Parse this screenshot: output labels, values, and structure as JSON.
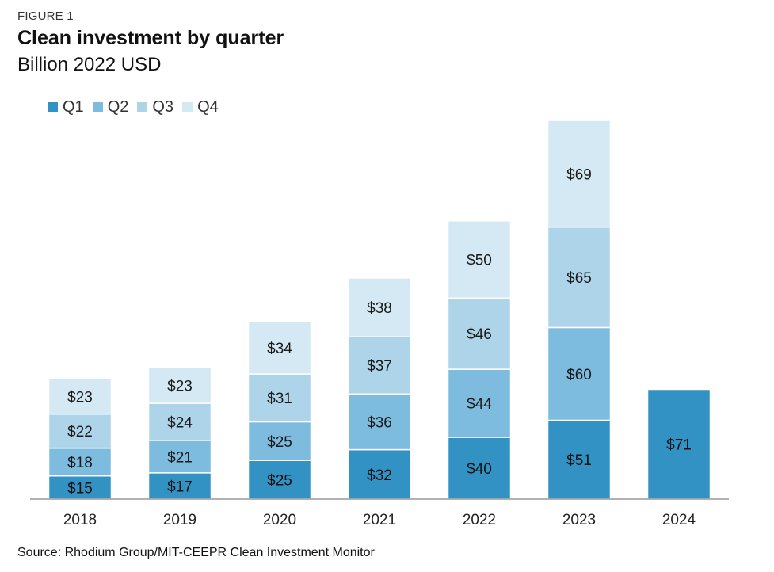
{
  "figure_label": "FIGURE 1",
  "chart_data": {
    "type": "bar",
    "stacked": true,
    "title": "Clean investment by quarter",
    "subtitle": "Billion 2022 USD",
    "xlabel": "",
    "ylabel": "",
    "categories": [
      "2018",
      "2019",
      "2020",
      "2021",
      "2022",
      "2023",
      "2024"
    ],
    "series": [
      {
        "name": "Q1",
        "color": "#3392c4",
        "values": [
          15,
          17,
          25,
          32,
          40,
          51,
          71
        ],
        "labels": [
          "$15",
          "$17",
          "$25",
          "$32",
          "$40",
          "$51",
          "$71"
        ]
      },
      {
        "name": "Q2",
        "color": "#7dbcdf",
        "values": [
          18,
          21,
          25,
          36,
          44,
          60,
          null
        ],
        "labels": [
          "$18",
          "$21",
          "$25",
          "$36",
          "$44",
          "$60",
          ""
        ]
      },
      {
        "name": "Q3",
        "color": "#aed4ea",
        "values": [
          22,
          24,
          31,
          37,
          46,
          65,
          null
        ],
        "labels": [
          "$22",
          "$24",
          "$31",
          "$37",
          "$46",
          "$65",
          ""
        ]
      },
      {
        "name": "Q4",
        "color": "#d5e9f4",
        "values": [
          23,
          23,
          34,
          38,
          50,
          69,
          null
        ],
        "labels": [
          "$23",
          "$23",
          "$34",
          "$38",
          "$50",
          "$69",
          ""
        ]
      }
    ],
    "ylim": [
      0,
      245
    ],
    "grid": false,
    "legend_position": "top-left"
  },
  "source": "Source: Rhodium Group/MIT-CEEPR Clean Investment Monitor"
}
